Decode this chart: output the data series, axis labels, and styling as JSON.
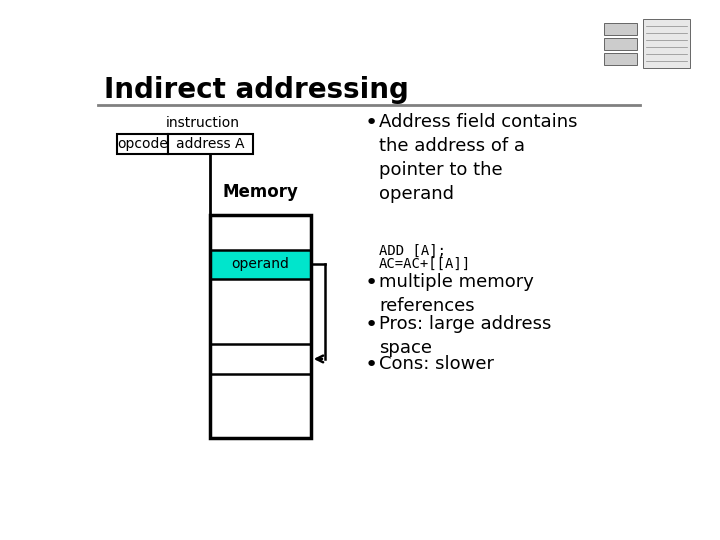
{
  "title": "Indirect addressing",
  "title_fontsize": 20,
  "title_fontweight": "bold",
  "bg_color": "#ffffff",
  "header_line_color": "#808080",
  "instruction_label": "instruction",
  "opcode_label": "opcode",
  "address_label": "address A",
  "memory_label": "Memory",
  "operand_label": "operand",
  "operand_fill": "#00e5cc",
  "bullet1": "Address field contains\nthe address of a\npointer to the\noperand",
  "code_line1": "ADD [A];",
  "code_line2": "AC=AC+[[A]]",
  "bullet2": "multiple memory\nreferences",
  "bullet3": "Pros: large address\nspace",
  "bullet4": "Cons: slower",
  "text_fontsize": 13,
  "code_fontsize": 10,
  "instr_fontsize": 10,
  "memory_fontsize": 12,
  "operand_fontsize": 10
}
